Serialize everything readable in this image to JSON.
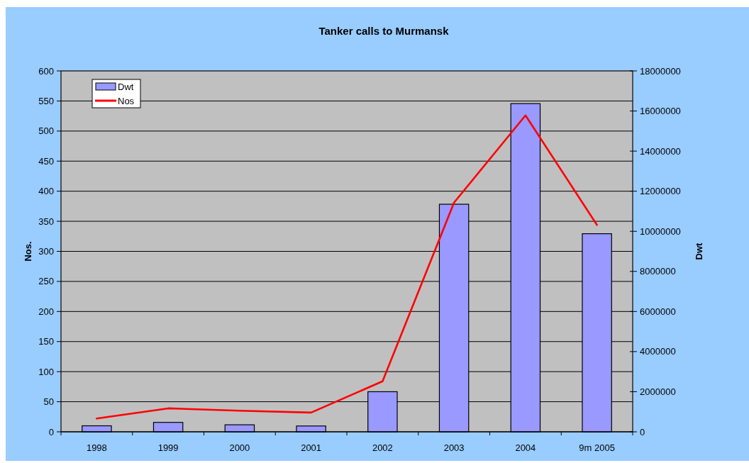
{
  "chart_data": {
    "type": "bar",
    "title": "Tanker calls to Murmansk",
    "ylabel": "Nos.",
    "y2label": "Dwt",
    "categories": [
      "1998",
      "1999",
      "2000",
      "2001",
      "2002",
      "2003",
      "2004",
      "9m 2005"
    ],
    "series": [
      {
        "name": "Dwt",
        "axis": "y2",
        "color": "#9999ff",
        "values": [
          300000,
          470000,
          350000,
          290000,
          2000000,
          11350000,
          16370000,
          9880000
        ]
      },
      {
        "name": "Nos",
        "type": "line",
        "axis": "y",
        "color": "#ff0000",
        "values": [
          22,
          39,
          35,
          32,
          84,
          381,
          526,
          344
        ]
      }
    ],
    "ylim": [
      0,
      600
    ],
    "yticks": [
      0,
      50,
      100,
      150,
      200,
      250,
      300,
      350,
      400,
      450,
      500,
      550,
      600
    ],
    "y2lim": [
      0,
      18000000
    ],
    "y2ticks": [
      0,
      2000000,
      4000000,
      6000000,
      8000000,
      10000000,
      12000000,
      14000000,
      16000000,
      18000000
    ],
    "grid": "y",
    "legend": "top left"
  }
}
